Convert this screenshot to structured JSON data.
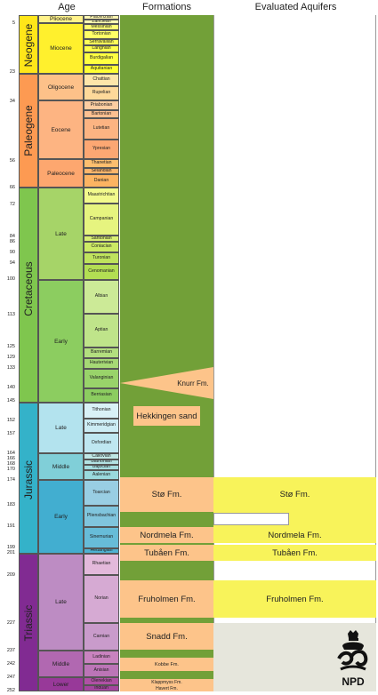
{
  "headers": {
    "age": "Age",
    "formations": "Formations",
    "aquifers": "Evaluated Aquifers"
  },
  "ticks": [
    "5",
    "23",
    "34",
    "56",
    "66",
    "72",
    "84",
    "86",
    "90",
    "94",
    "100",
    "113",
    "125",
    "129",
    "133",
    "140",
    "145",
    "152",
    "157",
    "164",
    "166",
    "168",
    "170",
    "174",
    "183",
    "191",
    "199",
    "201",
    "209",
    "227",
    "237",
    "242",
    "247",
    "252"
  ],
  "periods": {
    "neogene": "Neogene",
    "paleogene": "Paleogene",
    "cretaceous": "Cretaceous",
    "jurassic": "Jurassic",
    "triassic": "Triassic"
  },
  "epochs": {
    "pliocene": "Pliocene",
    "miocene": "Miocene",
    "oligocene": "Oligocene",
    "eocene": "Eocene",
    "paleocene": "Paleocene",
    "k_late": "Late",
    "k_early": "Early",
    "j_late": "Late",
    "j_middle": "Middle",
    "j_early": "Early",
    "t_late": "Late",
    "t_middle": "Middle",
    "t_lower": "Lower"
  },
  "stages": {
    "piacenzian": "Piacenzian",
    "zanclean": "Zanclean",
    "messinian": "Messinian",
    "tortonian": "Tortonian",
    "serravallian": "Serravallian",
    "langhian": "Langhian",
    "burdigalian": "Burdigalian",
    "aquitanian": "Aquitanian",
    "chattian": "Chattian",
    "rupelian": "Rupelian",
    "priabonian": "Priabonian",
    "bartonian": "Bartonian",
    "lutetian": "Lutetian",
    "ypresian": "Ypresian",
    "thanetian": "Thanetian",
    "selandian": "Selandian",
    "danian": "Danian",
    "maastrichtian": "Maastrichtian",
    "campanian": "Campanian",
    "santonian": "Santonian",
    "coniacian": "Coniacian",
    "turonian": "Turonian",
    "cenomanian": "Cenomanian",
    "albian": "Albian",
    "aptian": "Aptian",
    "barremian": "Barremian",
    "hauterivian": "Hauterivian",
    "valanginian": "Valanginian",
    "berriasian": "Berriasian",
    "tithonian": "Tithonian",
    "kimmeridgian": "Kimmeridgian",
    "oxfordian": "Oxfordian",
    "callovian": "Callovian",
    "bathonian": "Bathonian",
    "bajocian": "Bajocian",
    "aalenian": "Aalenian",
    "toarcian": "Toarcian",
    "pliensbachian": "Pliensbachian",
    "sinemurian": "Sinemurian",
    "hettangian": "Hettangian",
    "rhaetian": "Rhaetian",
    "norian": "Norian",
    "carnian": "Carnian",
    "ladinian": "Ladinian",
    "anisian": "Anisian",
    "olenekian": "Olenekian",
    "induan": "Induan"
  },
  "formations": {
    "knurr": "Knurr Fm.",
    "hekkingen": "Hekkingen sand",
    "sto": "Stø Fm.",
    "nordmela": "Nordmela Fm.",
    "tubaen": "Tubåen Fm.",
    "fruholmen": "Fruholmen Fm.",
    "snadd": "Snadd Fm.",
    "kobbe": "Kobbe Fm.",
    "klappmyss": "Klappmyss Fm.",
    "havert": "Havert Fm."
  },
  "aquifers": {
    "sto": "Stø Fm.",
    "nordmela": "Nordmela Fm.",
    "tubaen": "Tubåen Fm.",
    "fruholmen": "Fruholmen Fm."
  },
  "logo_text": "NPD",
  "colors": {
    "neogene": "#ffe619",
    "paleogene": "#fd9a52",
    "cretaceous": "#7fc64e",
    "jurassic": "#34b2c9",
    "triassic": "#812b92",
    "formation_green": "#72a038",
    "formation_orange": "#fdc48a",
    "aquifer_yellow": "#f8f35a",
    "logo_box": "#e6e6dc"
  }
}
